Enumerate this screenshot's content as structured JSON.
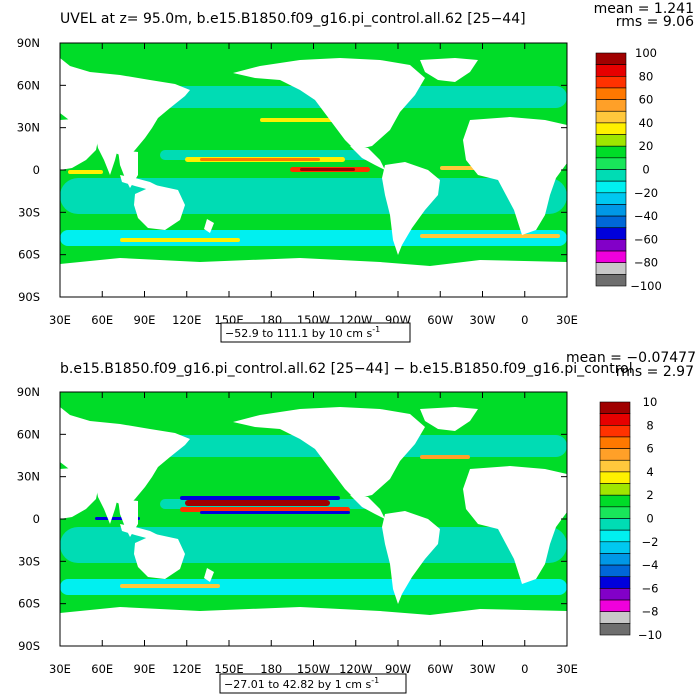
{
  "palette": [
    "#6e6e6e",
    "#c8c8c8",
    "#f000dc",
    "#8200c8",
    "#0000dc",
    "#0068d8",
    "#0098e6",
    "#00c8f0",
    "#00f0f0",
    "#00dcb4",
    "#19e65a",
    "#00dc28",
    "#a0e600",
    "#fff000",
    "#ffc83c",
    "#ffa028",
    "#ff7800",
    "#ff3200",
    "#e60000",
    "#a00000"
  ],
  "ocean_color_index": 11,
  "land_color": "#ffffff",
  "chart_data": [
    {
      "type": "heatmap",
      "title": "UVEL at z=  95.0m, b.e15.B1850.f09_g16.pi_control.all.62 [25−44]",
      "stats": {
        "mean": "mean = 1.241",
        "rms": "rms = 9.06"
      },
      "x_ticks": [
        "30E",
        "60E",
        "90E",
        "120E",
        "150E",
        "180",
        "150W",
        "120W",
        "90W",
        "60W",
        "30W",
        "0",
        "30E"
      ],
      "y_ticks": [
        "90N",
        "60N",
        "30N",
        "0",
        "30S",
        "60S",
        "90S"
      ],
      "range_label": "−52.9 to 111.1 by 10 cm s",
      "range_unit_exp": "-1",
      "colorbar": {
        "min": -100,
        "max": 100,
        "step": 10,
        "labels": [
          "100",
          "80",
          "60",
          "40",
          "20",
          "0",
          "−20",
          "−40",
          "−60",
          "−80",
          "−100"
        ]
      }
    },
    {
      "type": "heatmap",
      "title": "b.e15.B1850.f09_g16.pi_control.all.62 [25−44] − b.e15.B1850.f09_g16.pi_control",
      "stats": {
        "mean": "mean = −0.07477",
        "rms": "rms = 2.97"
      },
      "x_ticks": [
        "30E",
        "60E",
        "90E",
        "120E",
        "150E",
        "180",
        "150W",
        "120W",
        "90W",
        "60W",
        "30W",
        "0",
        "30E"
      ],
      "y_ticks": [
        "90N",
        "60N",
        "30N",
        "0",
        "30S",
        "60S",
        "90S"
      ],
      "range_label": "−27.01 to 42.82 by 1 cm s",
      "range_unit_exp": "-1",
      "colorbar": {
        "min": -10,
        "max": 10,
        "step": 1,
        "labels": [
          "10",
          "8",
          "6",
          "4",
          "2",
          "0",
          "−2",
          "−4",
          "−6",
          "−8",
          "−10"
        ]
      }
    }
  ]
}
